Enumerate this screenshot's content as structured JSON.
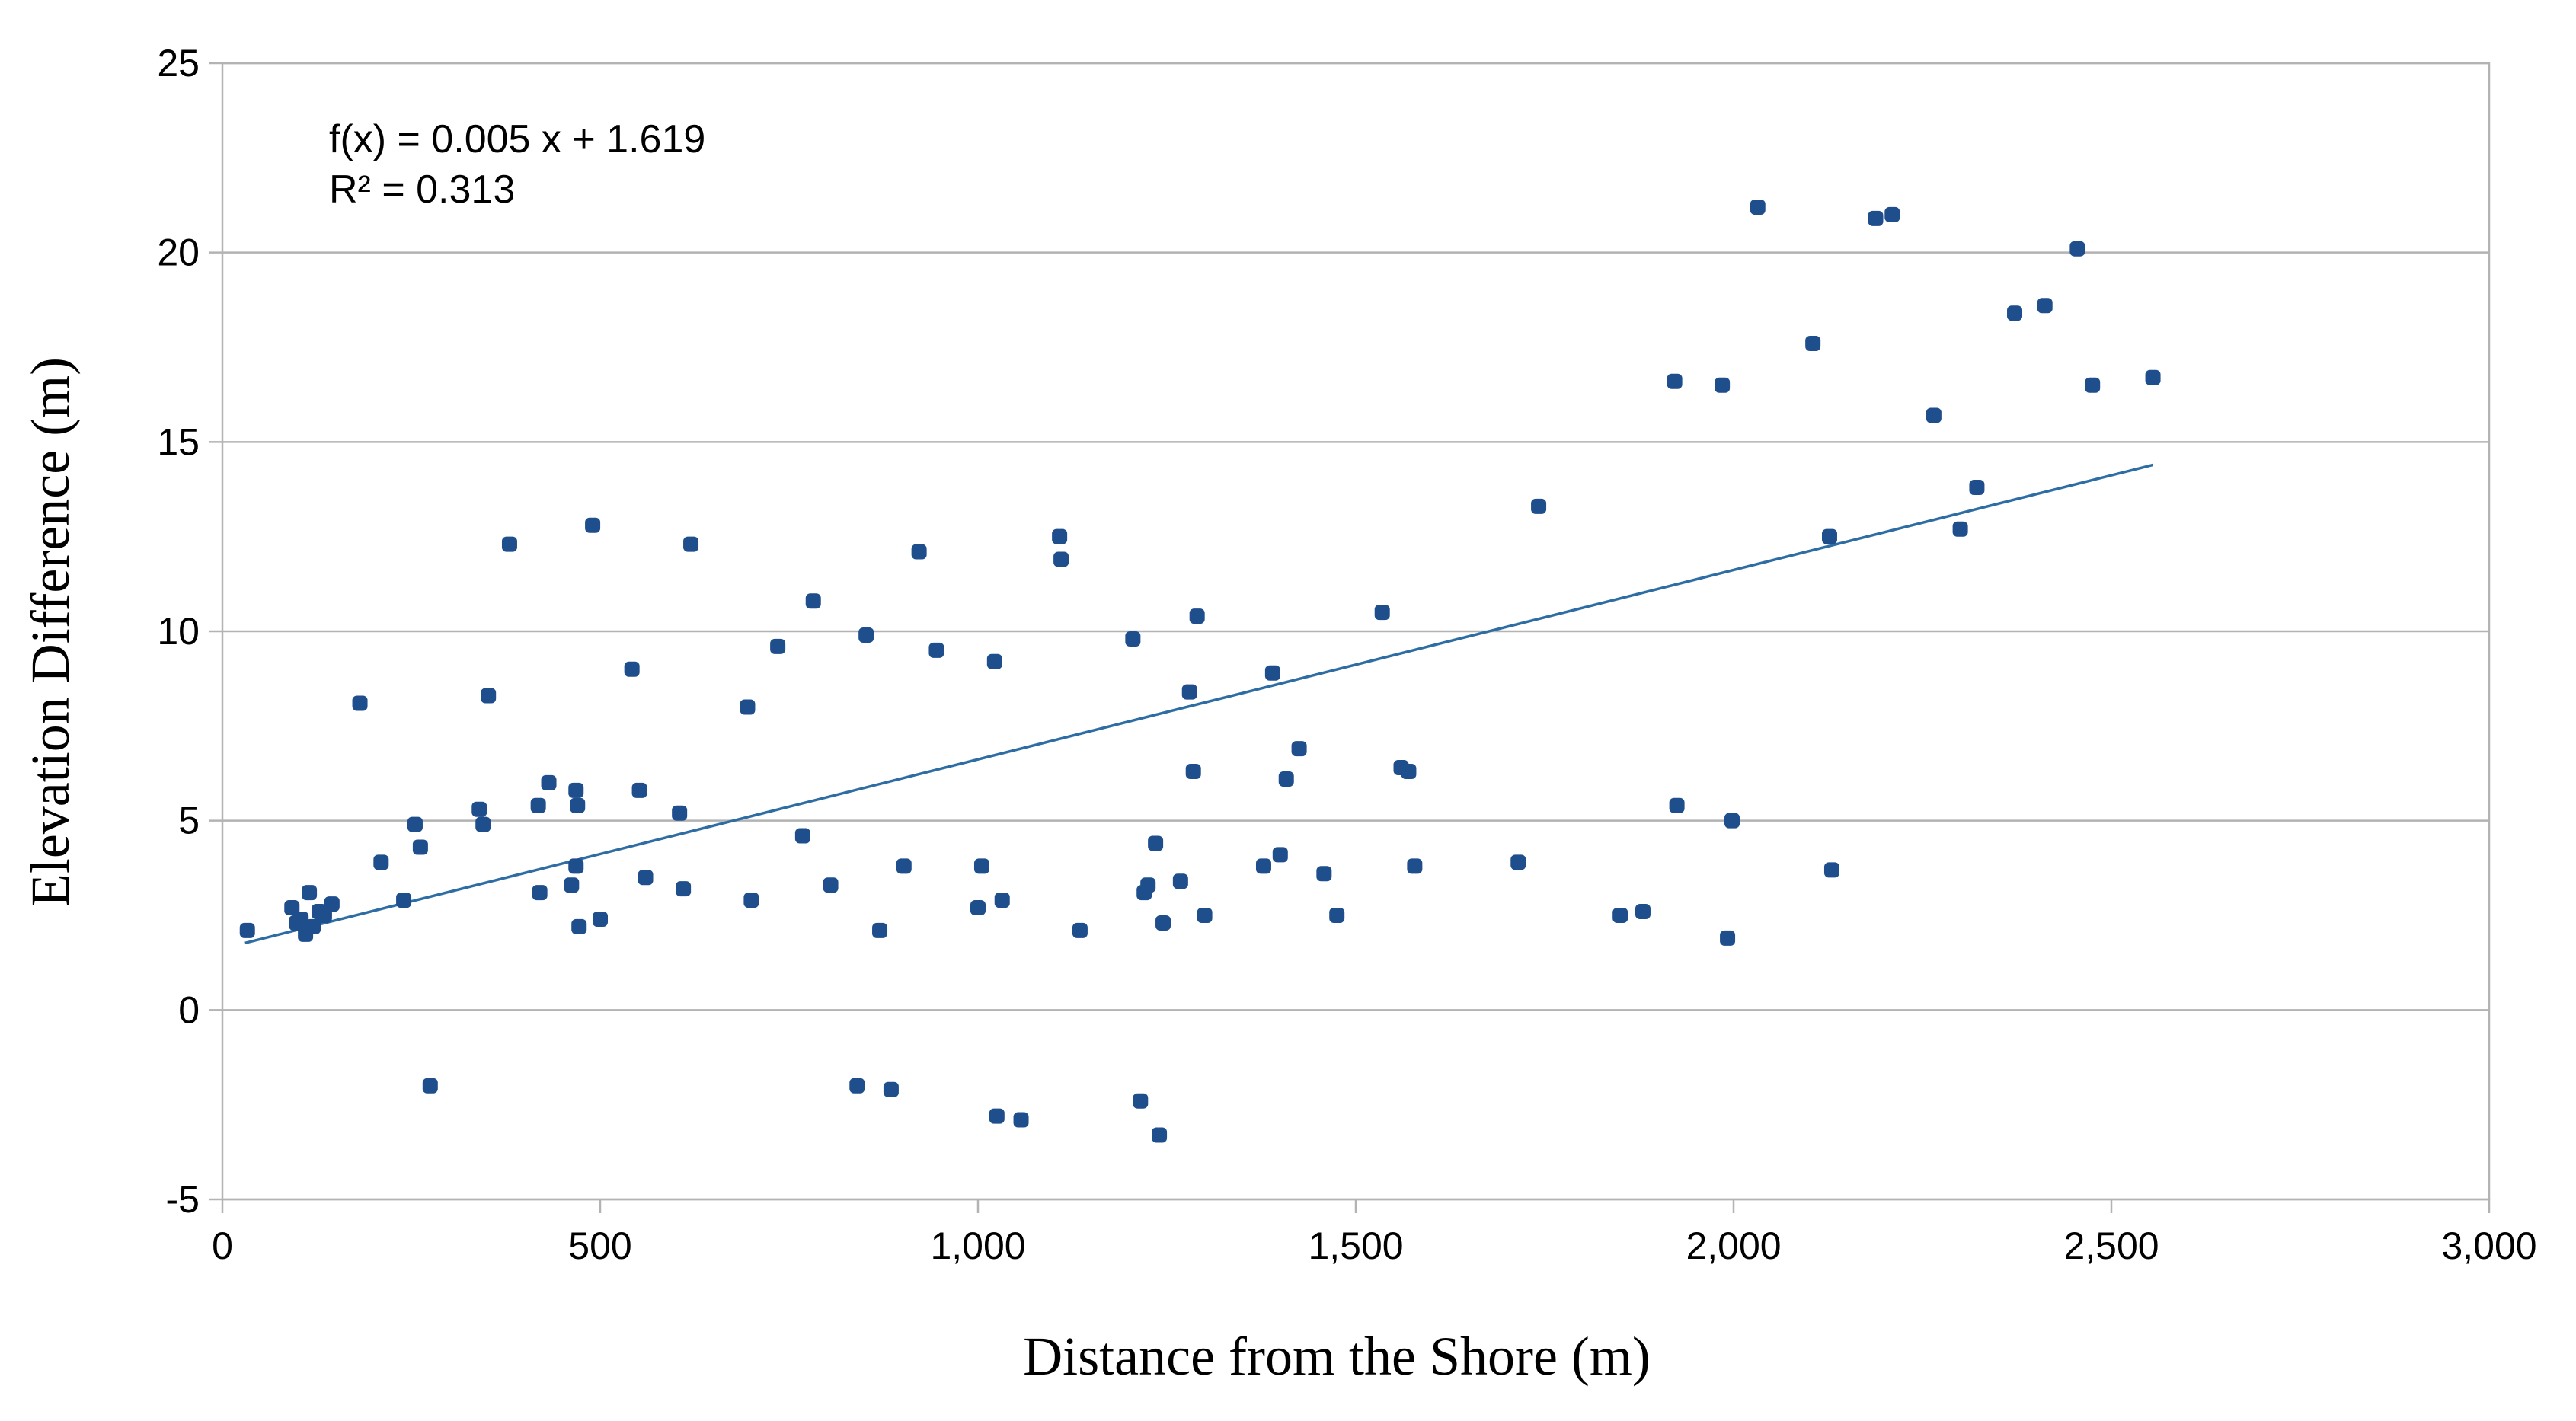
{
  "chart_data": {
    "type": "scatter",
    "title": "",
    "xlabel": "Distance from the Shore (m)",
    "ylabel": "Elevation Difference (m)",
    "xlim": [
      0,
      3000
    ],
    "ylim": [
      -5,
      25
    ],
    "x_ticks": [
      0,
      500,
      1000,
      1500,
      2000,
      2500,
      3000
    ],
    "x_tick_labels": [
      "0",
      "500",
      "1,000",
      "1,500",
      "2,000",
      "2,500",
      "3,000"
    ],
    "y_ticks": [
      -5,
      0,
      5,
      10,
      15,
      20,
      25
    ],
    "y_tick_labels": [
      "-5",
      "0",
      "5",
      "10",
      "15",
      "20",
      "25"
    ],
    "grid": true,
    "legend": "none",
    "marker_color": "#1f4e8c",
    "trend_color": "#2e6da4",
    "trendline": {
      "slope": 0.005,
      "intercept": 1.619,
      "x_range": [
        30,
        2555
      ],
      "equation_text": "f(x) = 0.005 x + 1.619",
      "r2_text": "R² = 0.313"
    },
    "points": [
      [
        33,
        2.1
      ],
      [
        92,
        2.7
      ],
      [
        98,
        2.3
      ],
      [
        104,
        2.4
      ],
      [
        110,
        2.0
      ],
      [
        115,
        3.1
      ],
      [
        120,
        2.2
      ],
      [
        128,
        2.6
      ],
      [
        135,
        2.5
      ],
      [
        145,
        2.8
      ],
      [
        182,
        8.1
      ],
      [
        210,
        3.9
      ],
      [
        240,
        2.9
      ],
      [
        255,
        4.9
      ],
      [
        262,
        4.3
      ],
      [
        275,
        -2.0
      ],
      [
        340,
        5.3
      ],
      [
        345,
        4.9
      ],
      [
        352,
        8.3
      ],
      [
        380,
        12.3
      ],
      [
        418,
        5.4
      ],
      [
        420,
        3.1
      ],
      [
        432,
        6.0
      ],
      [
        462,
        3.3
      ],
      [
        468,
        5.8
      ],
      [
        468,
        3.8
      ],
      [
        470,
        5.4
      ],
      [
        472,
        2.2
      ],
      [
        490,
        12.8
      ],
      [
        500,
        2.4
      ],
      [
        542,
        9.0
      ],
      [
        552,
        5.8
      ],
      [
        560,
        3.5
      ],
      [
        605,
        5.2
      ],
      [
        610,
        3.2
      ],
      [
        620,
        12.3
      ],
      [
        695,
        8.0
      ],
      [
        700,
        2.9
      ],
      [
        735,
        9.6
      ],
      [
        768,
        4.6
      ],
      [
        782,
        10.8
      ],
      [
        805,
        3.3
      ],
      [
        840,
        -2.0
      ],
      [
        852,
        9.9
      ],
      [
        870,
        2.1
      ],
      [
        885,
        -2.1
      ],
      [
        902,
        3.8
      ],
      [
        922,
        12.1
      ],
      [
        945,
        9.5
      ],
      [
        1000,
        2.7
      ],
      [
        1005,
        3.8
      ],
      [
        1022,
        9.2
      ],
      [
        1025,
        -2.8
      ],
      [
        1032,
        2.9
      ],
      [
        1057,
        -2.9
      ],
      [
        1108,
        12.5
      ],
      [
        1110,
        11.9
      ],
      [
        1135,
        2.1
      ],
      [
        1205,
        9.8
      ],
      [
        1215,
        -2.4
      ],
      [
        1220,
        3.1
      ],
      [
        1225,
        3.3
      ],
      [
        1235,
        4.4
      ],
      [
        1240,
        -3.3
      ],
      [
        1245,
        2.3
      ],
      [
        1268,
        3.4
      ],
      [
        1280,
        8.4
      ],
      [
        1285,
        6.3
      ],
      [
        1290,
        10.4
      ],
      [
        1300,
        2.5
      ],
      [
        1378,
        3.8
      ],
      [
        1390,
        8.9
      ],
      [
        1400,
        4.1
      ],
      [
        1408,
        6.1
      ],
      [
        1425,
        6.9
      ],
      [
        1458,
        3.6
      ],
      [
        1475,
        2.5
      ],
      [
        1535,
        10.5
      ],
      [
        1560,
        6.4
      ],
      [
        1570,
        6.3
      ],
      [
        1578,
        3.8
      ],
      [
        1715,
        3.9
      ],
      [
        1742,
        13.3
      ],
      [
        1850,
        2.5
      ],
      [
        1880,
        2.6
      ],
      [
        1922,
        16.6
      ],
      [
        1925,
        5.4
      ],
      [
        1985,
        16.5
      ],
      [
        1992,
        1.9
      ],
      [
        1998,
        5.0
      ],
      [
        2032,
        21.2
      ],
      [
        2105,
        17.6
      ],
      [
        2127,
        12.5
      ],
      [
        2130,
        3.7
      ],
      [
        2188,
        20.9
      ],
      [
        2210,
        21.0
      ],
      [
        2265,
        15.7
      ],
      [
        2300,
        12.7
      ],
      [
        2322,
        13.8
      ],
      [
        2372,
        18.4
      ],
      [
        2412,
        18.6
      ],
      [
        2455,
        20.1
      ],
      [
        2475,
        16.5
      ],
      [
        2555,
        16.7
      ]
    ]
  }
}
